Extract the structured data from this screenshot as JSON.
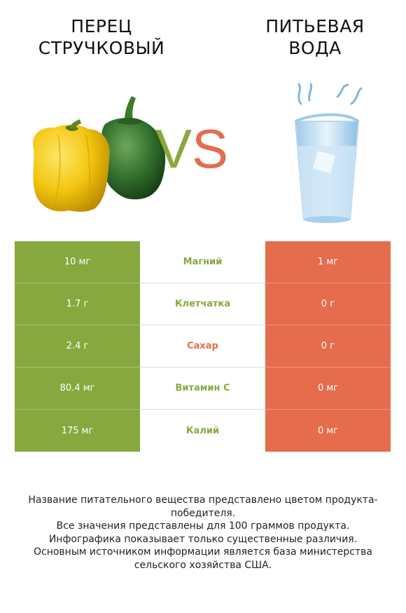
{
  "title_left": "Перец стручковый",
  "title_right": "Питьевая вода",
  "vs": {
    "v": "V",
    "s": "S"
  },
  "colors": {
    "winner_left": "#87a83f",
    "winner_right": "#e56c4d"
  },
  "rows": [
    {
      "left": "10 мг",
      "nutrient": "Магний",
      "right": "1 мг",
      "nutrient_color": "#87a83f"
    },
    {
      "left": "1.7 г",
      "nutrient": "Клетчатка",
      "right": "0 г",
      "nutrient_color": "#87a83f"
    },
    {
      "left": "2.4 г",
      "nutrient": "Сахар",
      "right": "0 г",
      "nutrient_color": "#e56c4d"
    },
    {
      "left": "80.4 мг",
      "nutrient": "Витамин C",
      "right": "0 мг",
      "nutrient_color": "#87a83f"
    },
    {
      "left": "175 мг",
      "nutrient": "Калий",
      "right": "0 мг",
      "nutrient_color": "#87a83f"
    }
  ],
  "footer": [
    "Название питательного вещества представлено цветом продукта-победителя.",
    "Все значения представлены для 100 граммов продукта.",
    "Инфографика показывает только существенные различия.",
    "Основным источником информации является база министерства сельского хозяйства США."
  ]
}
